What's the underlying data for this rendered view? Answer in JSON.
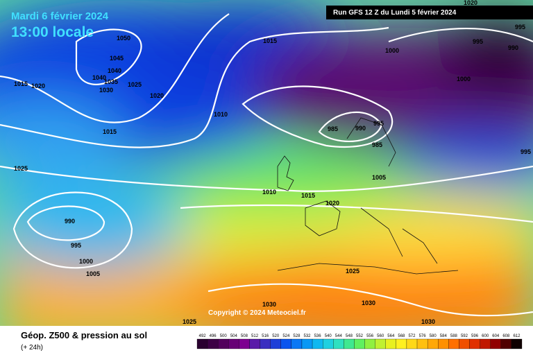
{
  "header": {
    "date": "Mardi 6 février 2024",
    "time": "13:00 locale",
    "run": "Run GFS 12 Z du Lundi 5 février 2024"
  },
  "map": {
    "copyright": "Copyright © 2024 Meteociel.fr",
    "isobar_labels": [
      1020,
      1050,
      1045,
      1040,
      1040,
      1035,
      1030,
      1025,
      1020,
      1015,
      1020,
      1015,
      1015,
      1010,
      1000,
      995,
      990,
      995,
      1000,
      985,
      990,
      995,
      985,
      995,
      1025,
      1010,
      1015,
      1020,
      1005,
      990,
      995,
      1000,
      1005,
      1025,
      1030,
      1030,
      1030,
      1025
    ]
  },
  "footer": {
    "title": "Géop. Z500 & pression au sol",
    "lead": "(+ 24h)"
  },
  "colorbar": {
    "values": [
      492,
      496,
      500,
      504,
      508,
      512,
      516,
      520,
      524,
      528,
      532,
      536,
      540,
      544,
      548,
      552,
      556,
      560,
      564,
      568,
      572,
      576,
      580,
      584,
      588,
      592,
      596,
      600,
      604,
      608,
      612
    ],
    "colors": [
      "#2a0030",
      "#3d0045",
      "#52005c",
      "#670075",
      "#7d0090",
      "#5a1aa8",
      "#3a2ec0",
      "#1e3fd8",
      "#0a55ee",
      "#0a78f5",
      "#0a98f5",
      "#10b8f0",
      "#20d0e0",
      "#30e0c0",
      "#40e890",
      "#60f060",
      "#90f040",
      "#c0f030",
      "#e8f020",
      "#fff020",
      "#ffd818",
      "#ffc010",
      "#ffa808",
      "#ff9000",
      "#ff7000",
      "#f05000",
      "#e03000",
      "#c01800",
      "#900000",
      "#500000",
      "#100000"
    ]
  }
}
